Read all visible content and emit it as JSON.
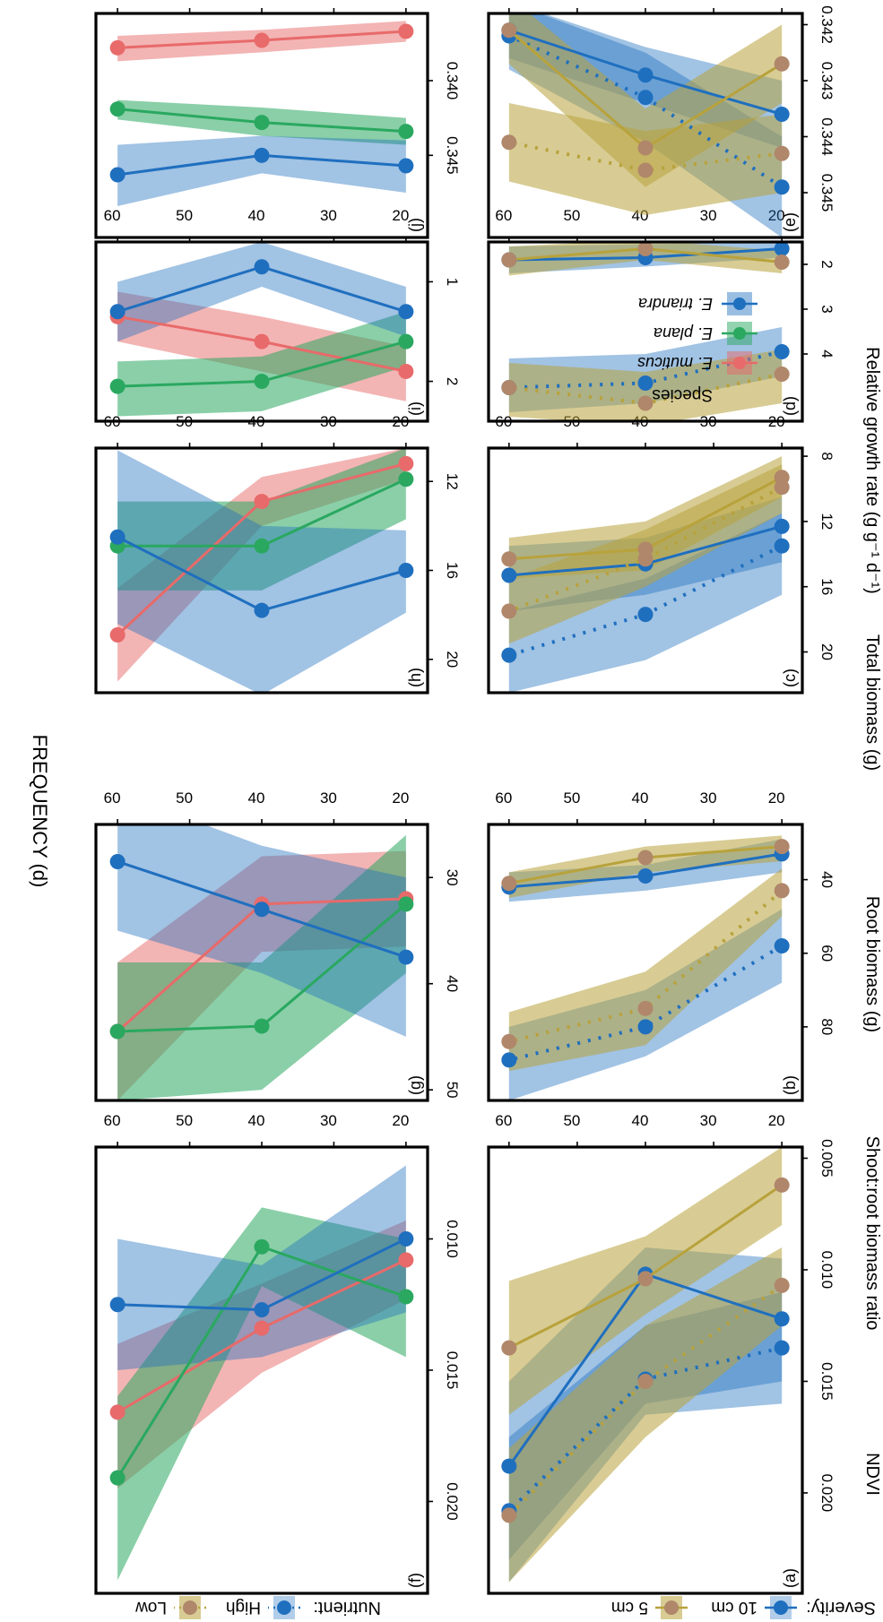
{
  "figure": {
    "xlabel": "FREQUENCY (d)",
    "colors": {
      "blue": "#1f6fbf",
      "gold": "#b8a23c",
      "red": "#e86a6a",
      "green": "#2aa860"
    },
    "legend_top": {
      "severity_label": "Severity:",
      "severity_items": [
        "10 cm",
        "5 cm"
      ],
      "nutrient_label": "Nutrient:",
      "nutrient_items": [
        "High",
        "Low"
      ]
    },
    "legend_species": {
      "title": "Species",
      "items": [
        "E. muticus",
        "E. plana",
        "E. triandra"
      ]
    }
  },
  "chart_data": [
    {
      "panel": "(a)",
      "type": "line",
      "ylabel": "Relative growth rate (g g⁻¹ d⁻¹)",
      "x": [
        20,
        40,
        60
      ],
      "xlim": [
        17,
        63
      ],
      "ylim": [
        0.0045,
        0.0245
      ],
      "yticks": [
        0.005,
        0.01,
        0.015,
        0.02
      ],
      "tick_labels": [
        "0.005",
        "0.010",
        "0.015",
        "0.020"
      ],
      "series": [
        {
          "color": "blue",
          "dash": "solid",
          "values": [
            0.0122,
            0.0102,
            0.0188
          ],
          "band": [
            [
              0.0095,
              0.015
            ],
            [
              0.009,
              0.016
            ],
            [
              0.015,
              0.023
            ]
          ]
        },
        {
          "color": "blue",
          "dash": "dotted",
          "values": [
            0.0135,
            0.0149,
            0.0208
          ],
          "band": [
            [
              0.011,
              0.016
            ],
            [
              0.0125,
              0.0165
            ],
            [
              0.0175,
              0.024
            ]
          ]
        },
        {
          "color": "gold",
          "dash": "solid",
          "values": [
            0.0062,
            0.0104,
            0.0135
          ],
          "band": [
            [
              0.0045,
              0.008
            ],
            [
              0.0085,
              0.012
            ],
            [
              0.0105,
              0.0165
            ]
          ]
        },
        {
          "color": "gold",
          "dash": "dotted",
          "values": [
            0.0107,
            0.015,
            0.021
          ],
          "band": [
            [
              0.009,
              0.0125
            ],
            [
              0.0125,
              0.0175
            ],
            [
              0.018,
              0.024
            ]
          ]
        }
      ]
    },
    {
      "panel": "(b)",
      "type": "line",
      "ylabel": "Total biomass (g)",
      "x": [
        20,
        40,
        60
      ],
      "xlim": [
        17,
        63
      ],
      "ylim": [
        25,
        100
      ],
      "yticks": [
        40,
        60,
        80
      ],
      "tick_labels": [
        "40",
        "60",
        "80"
      ],
      "series": [
        {
          "color": "blue",
          "dash": "solid",
          "values": [
            33,
            39,
            42
          ],
          "band": [
            [
              29,
              38
            ],
            [
              36,
              43
            ],
            [
              38,
              46
            ]
          ]
        },
        {
          "color": "blue",
          "dash": "dotted",
          "values": [
            58,
            80,
            89
          ],
          "band": [
            [
              48,
              68
            ],
            [
              70,
              88
            ],
            [
              80,
              100
            ]
          ]
        },
        {
          "color": "gold",
          "dash": "solid",
          "values": [
            31,
            34,
            41
          ],
          "band": [
            [
              28,
              35
            ],
            [
              31,
              38
            ],
            [
              38,
              45
            ]
          ]
        },
        {
          "color": "gold",
          "dash": "dotted",
          "values": [
            43,
            75,
            84
          ],
          "band": [
            [
              37,
              50
            ],
            [
              65,
              85
            ],
            [
              76,
              92
            ]
          ]
        }
      ]
    },
    {
      "panel": "(c)",
      "type": "line",
      "ylabel": "Root biomass (g)",
      "x": [
        20,
        40,
        60
      ],
      "xlim": [
        17,
        63
      ],
      "ylim": [
        7.5,
        22.5
      ],
      "yticks": [
        8,
        12,
        16,
        20
      ],
      "tick_labels": [
        "8",
        "12",
        "16",
        "20"
      ],
      "series": [
        {
          "color": "blue",
          "dash": "solid",
          "values": [
            12.3,
            14.6,
            15.3
          ],
          "band": [
            [
              10.5,
              14.5
            ],
            [
              13.0,
              16.5
            ],
            [
              13.5,
              17.5
            ]
          ]
        },
        {
          "color": "blue",
          "dash": "dotted",
          "values": [
            13.5,
            17.7,
            20.2
          ],
          "band": [
            [
              11.5,
              16.5
            ],
            [
              15.5,
              20.5
            ],
            [
              17.5,
              22.5
            ]
          ]
        },
        {
          "color": "gold",
          "dash": "solid",
          "values": [
            9.3,
            13.7,
            14.3
          ],
          "band": [
            [
              8.0,
              10.5
            ],
            [
              12.0,
              15.0
            ],
            [
              13.0,
              15.5
            ]
          ]
        },
        {
          "color": "gold",
          "dash": "dotted",
          "values": [
            9.9,
            14.3,
            17.5
          ],
          "band": [
            [
              8.5,
              11.5
            ],
            [
              12.5,
              16.0
            ],
            [
              15.5,
              19.5
            ]
          ]
        }
      ]
    },
    {
      "panel": "(d)",
      "type": "line",
      "ylabel": "Shoot:root biomass ratio",
      "x": [
        20,
        40,
        60
      ],
      "xlim": [
        17,
        63
      ],
      "ylim": [
        1.5,
        5.5
      ],
      "yticks": [
        2,
        3,
        4
      ],
      "tick_labels": [
        "2",
        "3",
        "4"
      ],
      "series": [
        {
          "color": "blue",
          "dash": "solid",
          "values": [
            1.65,
            1.85,
            1.9
          ],
          "band": [
            [
              1.5,
              1.85
            ],
            [
              1.55,
              2.05
            ],
            [
              1.6,
              2.2
            ]
          ]
        },
        {
          "color": "blue",
          "dash": "dotted",
          "values": [
            3.95,
            4.65,
            4.75
          ],
          "band": [
            [
              3.4,
              4.5
            ],
            [
              4.0,
              5.1
            ],
            [
              4.1,
              5.3
            ]
          ]
        },
        {
          "color": "gold",
          "dash": "solid",
          "values": [
            1.95,
            1.65,
            1.9
          ],
          "band": [
            [
              1.7,
              2.2
            ],
            [
              1.45,
              1.9
            ],
            [
              1.6,
              2.25
            ]
          ]
        },
        {
          "color": "gold",
          "dash": "dotted",
          "values": [
            4.45,
            5.1,
            4.75
          ],
          "band": [
            [
              3.9,
              5.1
            ],
            [
              4.4,
              5.6
            ],
            [
              4.2,
              5.4
            ]
          ]
        }
      ]
    },
    {
      "panel": "(e)",
      "type": "line",
      "ylabel": "NDVI",
      "x": [
        20,
        40,
        60
      ],
      "xlim": [
        17,
        63
      ],
      "ylim": [
        0.3418,
        0.3458
      ],
      "yticks": [
        0.342,
        0.343,
        0.344,
        0.345
      ],
      "tick_labels": [
        "0.342",
        "0.343",
        "0.344",
        "0.345"
      ],
      "series": [
        {
          "color": "blue",
          "dash": "solid",
          "values": [
            0.3436,
            0.3429,
            0.3421
          ],
          "band": [
            [
              0.343,
              0.3442
            ],
            [
              0.3424,
              0.3434
            ],
            [
              0.3416,
              0.3426
            ]
          ]
        },
        {
          "color": "blue",
          "dash": "dotted",
          "values": [
            0.3449,
            0.3433,
            0.3422
          ],
          "band": [
            [
              0.344,
              0.3458
            ],
            [
              0.3425,
              0.3441
            ],
            [
              0.3416,
              0.3428
            ]
          ]
        },
        {
          "color": "gold",
          "dash": "solid",
          "values": [
            0.3427,
            0.3442,
            0.3421
          ],
          "band": [
            [
              0.342,
              0.3434
            ],
            [
              0.3435,
              0.3449
            ],
            [
              0.3415,
              0.3427
            ]
          ]
        },
        {
          "color": "gold",
          "dash": "dotted",
          "values": [
            0.3443,
            0.3446,
            0.3441
          ],
          "band": [
            [
              0.3436,
              0.345
            ],
            [
              0.3439,
              0.3454
            ],
            [
              0.3434,
              0.3448
            ]
          ]
        }
      ]
    },
    {
      "panel": "(f)",
      "type": "line",
      "ylabel": "Relative growth rate (g g⁻¹ d⁻¹)",
      "x": [
        20,
        40,
        60
      ],
      "xlim": [
        17,
        63
      ],
      "ylim": [
        0.0065,
        0.0235
      ],
      "yticks": [
        0.01,
        0.015,
        0.02
      ],
      "tick_labels": [
        "0.010",
        "0.015",
        "0.020"
      ],
      "series": [
        {
          "color": "red",
          "dash": "solid",
          "values": [
            0.0108,
            0.0134,
            0.0166
          ],
          "band": [
            [
              0.0093,
              0.0123
            ],
            [
              0.0117,
              0.0151
            ],
            [
              0.014,
              0.0195
            ]
          ]
        },
        {
          "color": "green",
          "dash": "solid",
          "values": [
            0.0122,
            0.0103,
            0.0191
          ],
          "band": [
            [
              0.01,
              0.0145
            ],
            [
              0.0088,
              0.0118
            ],
            [
              0.016,
              0.023
            ]
          ]
        },
        {
          "color": "blue",
          "dash": "solid",
          "values": [
            0.01,
            0.0127,
            0.0125
          ],
          "band": [
            [
              0.0072,
              0.0128
            ],
            [
              0.011,
              0.0145
            ],
            [
              0.01,
              0.015
            ]
          ]
        }
      ]
    },
    {
      "panel": "(g)",
      "type": "line",
      "ylabel": "Total biomass (g)",
      "x": [
        20,
        40,
        60
      ],
      "xlim": [
        17,
        63
      ],
      "ylim": [
        25,
        51
      ],
      "yticks": [
        30,
        40,
        50
      ],
      "tick_labels": [
        "30",
        "40",
        "50"
      ],
      "series": [
        {
          "color": "red",
          "dash": "solid",
          "values": [
            32,
            32.5,
            44.5
          ],
          "band": [
            [
              27.5,
              36.5
            ],
            [
              28,
              37
            ],
            [
              38,
              51
            ]
          ]
        },
        {
          "color": "green",
          "dash": "solid",
          "values": [
            32.5,
            44,
            44.5
          ],
          "band": [
            [
              26,
              39
            ],
            [
              38,
              50
            ],
            [
              38,
              51
            ]
          ]
        },
        {
          "color": "blue",
          "dash": "solid",
          "values": [
            37.5,
            33,
            28.5
          ],
          "band": [
            [
              30,
              45
            ],
            [
              27,
              39
            ],
            [
              22,
              35
            ]
          ]
        }
      ]
    },
    {
      "panel": "(h)",
      "type": "line",
      "ylabel": "Root biomass (g)",
      "x": [
        20,
        40,
        60
      ],
      "xlim": [
        17,
        63
      ],
      "ylim": [
        10.5,
        21.5
      ],
      "yticks": [
        12,
        16,
        20
      ],
      "tick_labels": [
        "12",
        "16",
        "20"
      ],
      "series": [
        {
          "color": "red",
          "dash": "solid",
          "values": [
            11.2,
            12.9,
            18.9
          ],
          "band": [
            [
              10.5,
              11.9
            ],
            [
              11.8,
              14.0
            ],
            [
              16.8,
              21.0
            ]
          ]
        },
        {
          "color": "green",
          "dash": "solid",
          "values": [
            11.9,
            14.9,
            14.9
          ],
          "band": [
            [
              10.5,
              13.7
            ],
            [
              12.9,
              16.9
            ],
            [
              12.9,
              16.9
            ]
          ]
        },
        {
          "color": "blue",
          "dash": "solid",
          "values": [
            16.0,
            17.8,
            14.5
          ],
          "band": [
            [
              14.2,
              17.9
            ],
            [
              14.0,
              21.6
            ],
            [
              10.6,
              18.4
            ]
          ]
        }
      ]
    },
    {
      "panel": "(i)",
      "type": "line",
      "ylabel": "Shoot:root biomass ratio",
      "x": [
        20,
        40,
        60
      ],
      "xlim": [
        17,
        63
      ],
      "ylim": [
        0.6,
        2.4
      ],
      "yticks": [
        1,
        2
      ],
      "tick_labels": [
        "1",
        "2"
      ],
      "series": [
        {
          "color": "red",
          "dash": "solid",
          "values": [
            1.9,
            1.6,
            1.35
          ],
          "band": [
            [
              1.65,
              2.2
            ],
            [
              1.35,
              1.9
            ],
            [
              1.1,
              1.6
            ]
          ]
        },
        {
          "color": "green",
          "dash": "solid",
          "values": [
            1.6,
            2.0,
            2.05
          ],
          "band": [
            [
              1.3,
              1.85
            ],
            [
              1.75,
              2.3
            ],
            [
              1.8,
              2.35
            ]
          ]
        },
        {
          "color": "blue",
          "dash": "solid",
          "values": [
            1.3,
            0.85,
            1.3
          ],
          "band": [
            [
              1.05,
              1.55
            ],
            [
              0.6,
              1.05
            ],
            [
              1.0,
              1.6
            ]
          ]
        }
      ]
    },
    {
      "panel": "(j)",
      "type": "line",
      "ylabel": "NDVI",
      "x": [
        20,
        40,
        60
      ],
      "xlim": [
        17,
        63
      ],
      "ylim": [
        0.3355,
        0.3505
      ],
      "yticks": [
        0.34,
        0.345
      ],
      "tick_labels": [
        "0.340",
        "0.345"
      ],
      "series": [
        {
          "color": "red",
          "dash": "solid",
          "values": [
            0.3367,
            0.3373,
            0.3378
          ],
          "band": [
            [
              0.336,
              0.3374
            ],
            [
              0.3366,
              0.3381
            ],
            [
              0.337,
              0.3387
            ]
          ]
        },
        {
          "color": "green",
          "dash": "solid",
          "values": [
            0.3434,
            0.3428,
            0.3419
          ],
          "band": [
            [
              0.3425,
              0.3443
            ],
            [
              0.3418,
              0.3437
            ],
            [
              0.3413,
              0.3426
            ]
          ]
        },
        {
          "color": "blue",
          "dash": "solid",
          "values": [
            0.3457,
            0.345,
            0.3463
          ],
          "band": [
            [
              0.344,
              0.3475
            ],
            [
              0.3437,
              0.3462
            ],
            [
              0.3443,
              0.3484
            ]
          ]
        }
      ]
    }
  ]
}
